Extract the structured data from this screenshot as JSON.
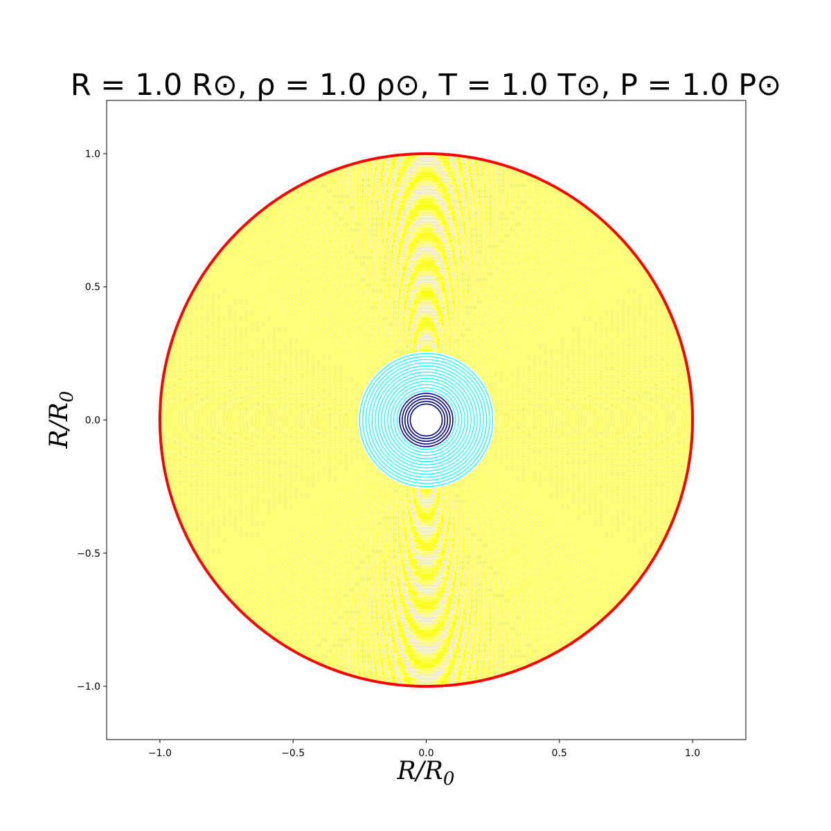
{
  "chart_data": {
    "type": "line",
    "title": "R = 1.0 R⊙, ρ = 1.0 ρ⊙, T = 1.0 T⊙, P = 1.0 P⊙",
    "xlabel": {
      "main": "R/R",
      "sub": "0"
    },
    "ylabel": {
      "main": "R/R",
      "sub": "0"
    },
    "xlim": [
      -1.2,
      1.2
    ],
    "ylim": [
      -1.2,
      1.2
    ],
    "x_ticks": [
      -1.0,
      -0.5,
      0.0,
      0.5,
      1.0
    ],
    "y_ticks": [
      -1.0,
      -0.5,
      0.0,
      0.5,
      1.0
    ],
    "x_tick_labels": [
      "−1.0",
      "−0.5",
      "0.0",
      "0.5",
      "1.0"
    ],
    "y_tick_labels": [
      "1.0",
      "0.5",
      "0.0",
      "−0.5",
      "−1.0"
    ],
    "grid": false,
    "series": [
      {
        "color": "#000080",
        "r_start": 0.1,
        "r_end": 0.06,
        "count": 5,
        "stroke": 1.6
      },
      {
        "color": "#00ffff",
        "r_start": 0.25,
        "r_end": 0.11,
        "count": 13,
        "stroke": 1.2
      },
      {
        "color": "#ffff00",
        "r_start": 1.0,
        "r_end": 0.26,
        "count": 150,
        "stroke": 1.0
      },
      {
        "color": "#ff0000",
        "r_start": 1.0,
        "r_end": 1.0,
        "count": 1,
        "stroke": 4.0
      }
    ]
  }
}
